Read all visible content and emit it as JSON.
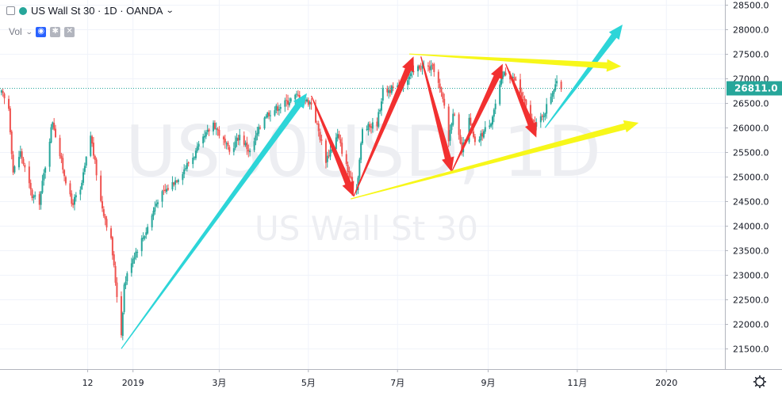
{
  "header": {
    "symbol_title": "US Wall St 30 · 1D · OANDA",
    "volume_label": "Vol"
  },
  "watermark": {
    "line1": "US30USD, 1D",
    "line2": "US Wall St 30"
  },
  "price_label": "26811.0",
  "colors": {
    "up": "#26a69a",
    "down": "#ef5350",
    "arrow_cyan": "#2dd5d8",
    "arrow_red": "#f23030",
    "arrow_yellow": "#f7f71a",
    "price_label_bg": "#26a69a"
  },
  "icons": {
    "visibility": "eye-icon",
    "settings": "gear-icon",
    "remove": "close-icon",
    "axis_settings": "gear-icon"
  },
  "chart_data": {
    "type": "candlestick",
    "y_axis": {
      "ticks": [
        21500,
        22000,
        22500,
        23000,
        23500,
        24000,
        24500,
        25000,
        25500,
        26000,
        26500,
        27000,
        27500,
        28000,
        28500
      ],
      "range": [
        21100,
        28600
      ],
      "label_format": "0.0"
    },
    "x_axis": {
      "labels": [
        "12",
        "2019",
        "3月",
        "5月",
        "7月",
        "9月",
        "11月",
        "2020"
      ],
      "label_dates": [
        "2018-12-01",
        "2019-01-01",
        "2019-03-01",
        "2019-05-01",
        "2019-07-01",
        "2019-09-01",
        "2019-11-01",
        "2020-01-01"
      ],
      "range": [
        "2018-10-02",
        "2020-02-10"
      ]
    },
    "last_price": 26811.0,
    "price_path": [
      [
        "2018-10-03",
        26700
      ],
      [
        "2018-10-08",
        26400
      ],
      [
        "2018-10-11",
        25100
      ],
      [
        "2018-10-16",
        25500
      ],
      [
        "2018-10-24",
        24600
      ],
      [
        "2018-10-29",
        24500
      ],
      [
        "2018-11-07",
        26150
      ],
      [
        "2018-11-13",
        25300
      ],
      [
        "2018-11-20",
        24450
      ],
      [
        "2018-11-26",
        24700
      ],
      [
        "2018-12-03",
        25850
      ],
      [
        "2018-12-10",
        24500
      ],
      [
        "2018-12-17",
        23700
      ],
      [
        "2018-12-21",
        22600
      ],
      [
        "2018-12-24",
        21800
      ],
      [
        "2018-12-26",
        22800
      ],
      [
        "2018-12-31",
        23300
      ],
      [
        "2019-01-10",
        23900
      ],
      [
        "2019-01-18",
        24550
      ],
      [
        "2019-02-01",
        25000
      ],
      [
        "2019-02-12",
        25450
      ],
      [
        "2019-02-25",
        26100
      ],
      [
        "2019-03-08",
        25500
      ],
      [
        "2019-03-15",
        25850
      ],
      [
        "2019-03-22",
        25500
      ],
      [
        "2019-04-01",
        26250
      ],
      [
        "2019-04-12",
        26450
      ],
      [
        "2019-04-23",
        26650
      ],
      [
        "2019-05-03",
        26500
      ],
      [
        "2019-05-13",
        25350
      ],
      [
        "2019-05-21",
        25850
      ],
      [
        "2019-05-31",
        24800
      ],
      [
        "2019-06-03",
        24750
      ],
      [
        "2019-06-07",
        25950
      ],
      [
        "2019-06-17",
        26100
      ],
      [
        "2019-06-21",
        26750
      ],
      [
        "2019-07-01",
        26800
      ],
      [
        "2019-07-11",
        27100
      ],
      [
        "2019-07-16",
        27250
      ],
      [
        "2019-07-26",
        27200
      ],
      [
        "2019-08-02",
        26450
      ],
      [
        "2019-08-05",
        25750
      ],
      [
        "2019-08-08",
        26350
      ],
      [
        "2019-08-14",
        25500
      ],
      [
        "2019-08-19",
        26150
      ],
      [
        "2019-08-23",
        25650
      ],
      [
        "2019-09-03",
        26150
      ],
      [
        "2019-09-12",
        27150
      ],
      [
        "2019-09-20",
        26950
      ],
      [
        "2019-10-02",
        26050
      ],
      [
        "2019-10-08",
        26200
      ],
      [
        "2019-10-17",
        26900
      ],
      [
        "2019-10-21",
        26811
      ]
    ],
    "annotations": [
      {
        "type": "arrow",
        "color": "cyan",
        "from": [
          "2018-12-24",
          21500
        ],
        "to": [
          "2019-04-30",
          26700
        ]
      },
      {
        "type": "arrow",
        "color": "red",
        "from": [
          "2019-05-03",
          26650
        ],
        "to": [
          "2019-06-01",
          24600
        ]
      },
      {
        "type": "arrow",
        "color": "red",
        "from": [
          "2019-06-01",
          24600
        ],
        "to": [
          "2019-07-12",
          27450
        ]
      },
      {
        "type": "arrow",
        "color": "red",
        "from": [
          "2019-07-17",
          27450
        ],
        "to": [
          "2019-08-07",
          25100
        ]
      },
      {
        "type": "arrow",
        "color": "red",
        "from": [
          "2019-08-07",
          25100
        ],
        "to": [
          "2019-09-11",
          27300
        ]
      },
      {
        "type": "arrow",
        "color": "red",
        "from": [
          "2019-09-13",
          27300
        ],
        "to": [
          "2019-10-04",
          25800
        ]
      },
      {
        "type": "arrow",
        "color": "cyan",
        "from": [
          "2019-10-10",
          26000
        ],
        "to": [
          "2019-12-02",
          28100
        ]
      },
      {
        "type": "arrow",
        "color": "yellow",
        "from": [
          "2019-07-09",
          27500
        ],
        "to": [
          "2019-12-01",
          27250
        ]
      },
      {
        "type": "arrow",
        "color": "yellow",
        "from": [
          "2019-05-30",
          24550
        ],
        "to": [
          "2019-12-13",
          26100
        ]
      }
    ]
  }
}
